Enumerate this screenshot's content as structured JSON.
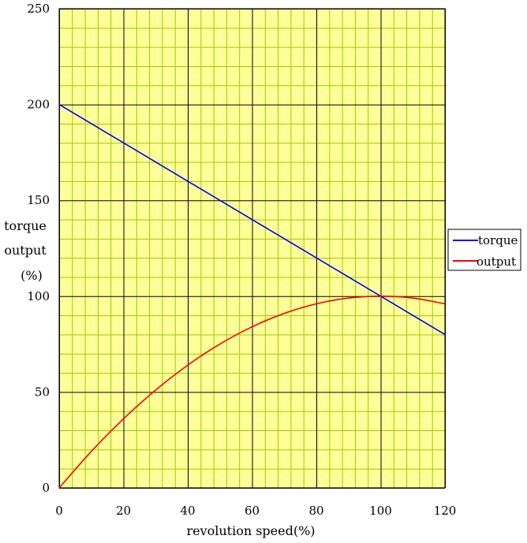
{
  "chart_data": {
    "type": "line",
    "title": "",
    "xlabel": "revolution speed(%)",
    "ylabel_lines": [
      "torque",
      "output",
      "(%)"
    ],
    "xlim": [
      0,
      120
    ],
    "ylim": [
      0,
      250
    ],
    "x_ticks": [
      "0",
      "20",
      "40",
      "60",
      "80",
      "100",
      "120"
    ],
    "y_ticks": [
      "0",
      "50",
      "100",
      "150",
      "200",
      "250"
    ],
    "x_major_step": 20,
    "x_minor_step": 4,
    "y_major_step": 50,
    "y_minor_step": 10,
    "grid": true,
    "plot_background": "#ffff99",
    "major_grid_color": "#000000",
    "minor_grid_color": "#99cc00",
    "legend_position": "right",
    "series": [
      {
        "name": "torque",
        "color": "#0000ff",
        "x": [
          0,
          20,
          40,
          60,
          80,
          100,
          120
        ],
        "values": [
          200,
          180,
          160,
          140,
          120,
          100,
          80
        ]
      },
      {
        "name": "output",
        "color": "#ff0000",
        "x": [
          0,
          10,
          20,
          30,
          40,
          50,
          60,
          70,
          80,
          90,
          100,
          110,
          120
        ],
        "values": [
          0,
          19,
          36,
          51,
          64,
          75,
          84,
          91,
          96,
          99,
          100,
          99,
          96
        ]
      }
    ]
  }
}
